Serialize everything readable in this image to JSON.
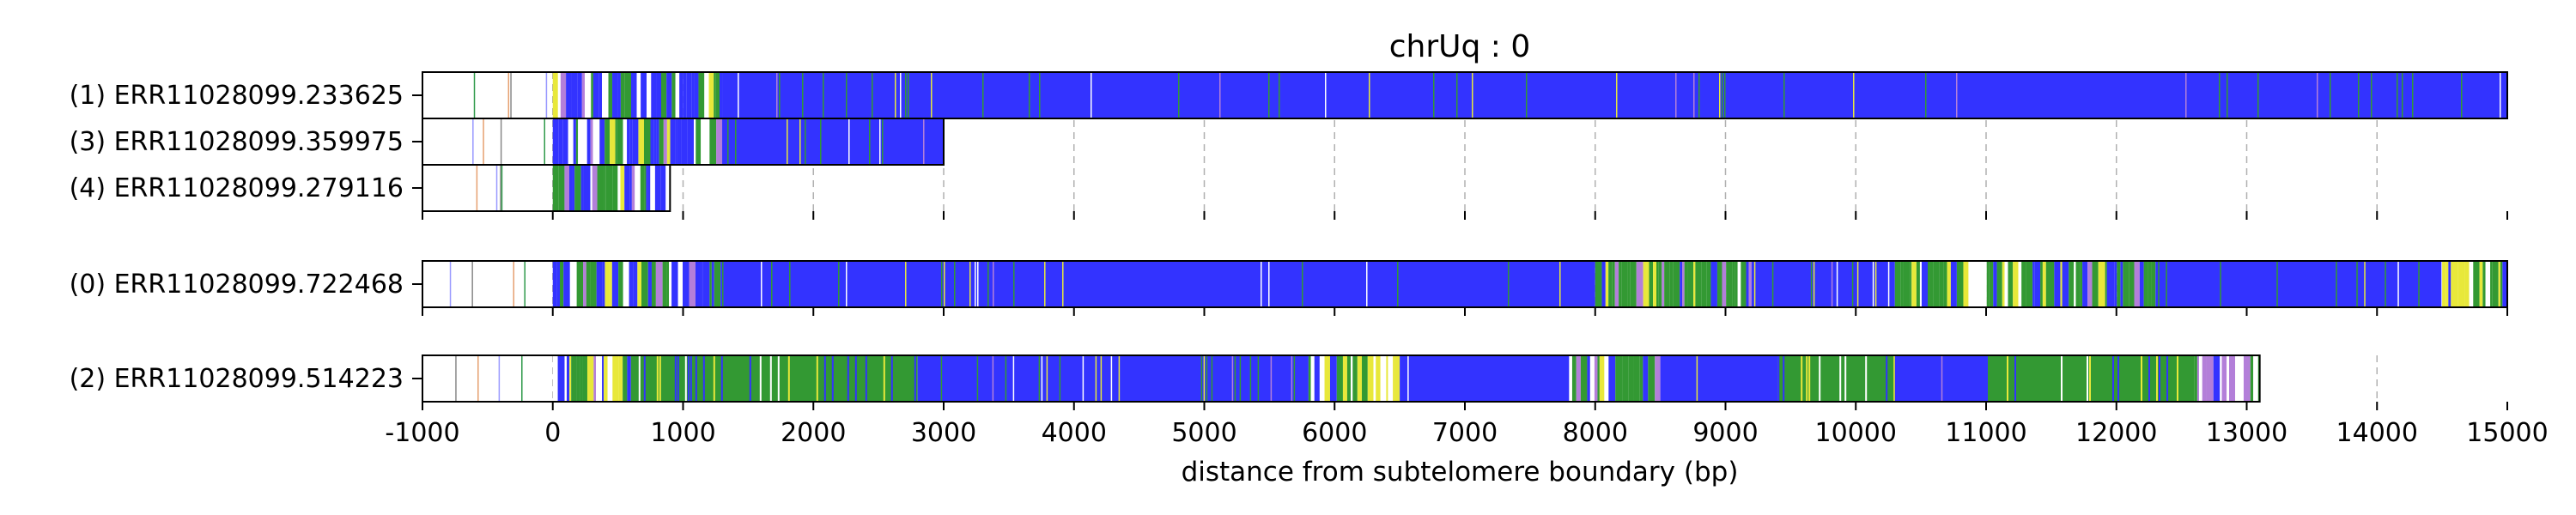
{
  "chart_data": {
    "type": "heatmap",
    "title": "chrUq : 0",
    "xlabel": "distance from subtelomere boundary (bp)",
    "ylabel": "",
    "xlim": [
      -1000,
      15000
    ],
    "x_ticks": [
      -1000,
      0,
      1000,
      2000,
      3000,
      4000,
      5000,
      6000,
      7000,
      8000,
      9000,
      10000,
      11000,
      12000,
      13000,
      14000,
      15000
    ],
    "grid": "vertical dashed at each x tick",
    "colors": {
      "blue": "#3333ff",
      "green": "#339933",
      "yellow": "#e8e83a",
      "violet": "#b37fd9",
      "gap": "#ffffff"
    },
    "groups": [
      {
        "reads": [
          {
            "label": "(1) ERR11028099.233625",
            "start": -1000,
            "end": 15000,
            "dense_start": 0,
            "segments": [
              {
                "from": 0,
                "to": 1300,
                "pattern": "mixed"
              },
              {
                "from": 1300,
                "to": 3000,
                "pattern": "blue_sparse_green"
              },
              {
                "from": 3000,
                "to": 15000,
                "pattern": "blue"
              }
            ]
          },
          {
            "label": "(3) ERR11028099.359975",
            "start": -1000,
            "end": 3000,
            "dense_start": 0,
            "segments": [
              {
                "from": 0,
                "to": 1300,
                "pattern": "mixed"
              },
              {
                "from": 1300,
                "to": 3000,
                "pattern": "blue_sparse_green"
              }
            ]
          },
          {
            "label": "(4) ERR11028099.279116",
            "start": -1000,
            "end": 900,
            "dense_start": 0,
            "segments": [
              {
                "from": 0,
                "to": 900,
                "pattern": "mixed"
              }
            ]
          }
        ]
      },
      {
        "reads": [
          {
            "label": "(0) ERR11028099.722468",
            "start": -1000,
            "end": 15000,
            "dense_start": 0,
            "segments": [
              {
                "from": 0,
                "to": 1300,
                "pattern": "mixed"
              },
              {
                "from": 1300,
                "to": 8000,
                "pattern": "blue"
              },
              {
                "from": 8000,
                "to": 9200,
                "pattern": "mixed_green"
              },
              {
                "from": 9200,
                "to": 10300,
                "pattern": "blue_sparse_green"
              },
              {
                "from": 10300,
                "to": 12300,
                "pattern": "mixed_green"
              },
              {
                "from": 12300,
                "to": 14500,
                "pattern": "blue_sparse_green"
              },
              {
                "from": 14500,
                "to": 15000,
                "pattern": "mixed_yellow"
              }
            ]
          }
        ]
      },
      {
        "reads": [
          {
            "label": "(2) ERR11028099.514223",
            "start": -1000,
            "end": 13100,
            "dense_start": 0,
            "segments": [
              {
                "from": 0,
                "to": 600,
                "pattern": "mixed"
              },
              {
                "from": 600,
                "to": 2800,
                "pattern": "green"
              },
              {
                "from": 2800,
                "to": 5800,
                "pattern": "blue_sparse_green"
              },
              {
                "from": 5800,
                "to": 6500,
                "pattern": "mixed_yellow"
              },
              {
                "from": 6500,
                "to": 7800,
                "pattern": "blue"
              },
              {
                "from": 7800,
                "to": 8500,
                "pattern": "mixed_green"
              },
              {
                "from": 8500,
                "to": 9400,
                "pattern": "blue"
              },
              {
                "from": 9400,
                "to": 10300,
                "pattern": "green"
              },
              {
                "from": 10300,
                "to": 11000,
                "pattern": "blue"
              },
              {
                "from": 11000,
                "to": 12600,
                "pattern": "green"
              },
              {
                "from": 12600,
                "to": 13100,
                "pattern": "mixed_violet"
              }
            ]
          }
        ]
      }
    ]
  }
}
